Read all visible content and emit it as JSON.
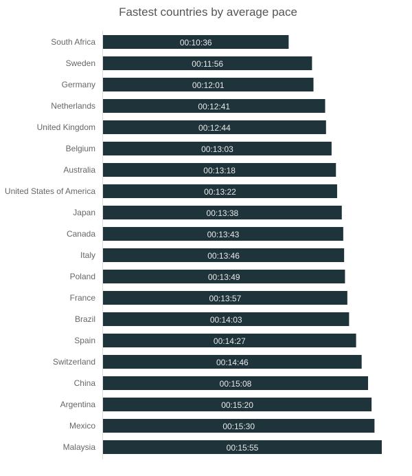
{
  "chart_data": {
    "type": "bar",
    "orientation": "horizontal",
    "title": "Fastest countries by average pace",
    "xlabel": "",
    "ylabel": "",
    "xlim_seconds": [
      0,
      955
    ],
    "grid": false,
    "bar_color": "#1e343a",
    "categories": [
      "South Africa",
      "Sweden",
      "Germany",
      "Netherlands",
      "United Kingdom",
      "Belgium",
      "Australia",
      "United States of America",
      "Japan",
      "Canada",
      "Italy",
      "Poland",
      "France",
      "Brazil",
      "Spain",
      "Switzerland",
      "China",
      "Argentina",
      "Mexico",
      "Malaysia"
    ],
    "labels": [
      "00:10:36",
      "00:11:56",
      "00:12:01",
      "00:12:41",
      "00:12:44",
      "00:13:03",
      "00:13:18",
      "00:13:22",
      "00:13:38",
      "00:13:43",
      "00:13:46",
      "00:13:49",
      "00:13:57",
      "00:14:03",
      "00:14:27",
      "00:14:46",
      "00:15:08",
      "00:15:20",
      "00:15:30",
      "00:15:55"
    ]
  }
}
